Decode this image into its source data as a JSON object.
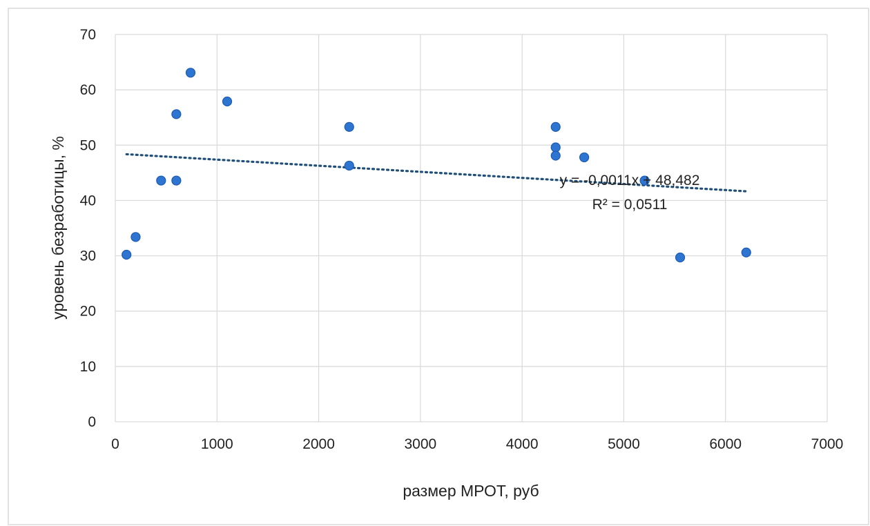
{
  "chart_data": {
    "type": "scatter",
    "title": "",
    "xlabel": "размер МРОТ, руб",
    "ylabel": "уровень безработицы, %",
    "xlim": [
      0,
      7000
    ],
    "ylim": [
      0,
      70
    ],
    "x_ticks": [
      0,
      1000,
      2000,
      3000,
      4000,
      5000,
      6000,
      7000
    ],
    "y_ticks": [
      0,
      10,
      20,
      30,
      40,
      50,
      60,
      70
    ],
    "x_tick_labels": [
      "0",
      "1000",
      "2000",
      "3000",
      "4000",
      "5000",
      "6000",
      "7000"
    ],
    "y_tick_labels": [
      "0",
      "10",
      "20",
      "30",
      "40",
      "50",
      "60",
      "70"
    ],
    "grid": true,
    "legend": "none",
    "series": [
      {
        "points": [
          {
            "x": 110,
            "y": 30.2
          },
          {
            "x": 200,
            "y": 33.4
          },
          {
            "x": 450,
            "y": 43.6
          },
          {
            "x": 600,
            "y": 43.6
          },
          {
            "x": 600,
            "y": 55.6
          },
          {
            "x": 740,
            "y": 63.1
          },
          {
            "x": 1100,
            "y": 57.9
          },
          {
            "x": 2300,
            "y": 53.3
          },
          {
            "x": 2300,
            "y": 46.3
          },
          {
            "x": 4330,
            "y": 53.3
          },
          {
            "x": 4330,
            "y": 49.6
          },
          {
            "x": 4330,
            "y": 48.1
          },
          {
            "x": 4611,
            "y": 47.8
          },
          {
            "x": 5205,
            "y": 43.6
          },
          {
            "x": 5554,
            "y": 29.7
          },
          {
            "x": 6204,
            "y": 30.6
          }
        ],
        "color": "#2e75d1"
      }
    ],
    "trendline": {
      "type": "linear",
      "style": "dotted",
      "color": "#1f4e79",
      "slope": -0.0011,
      "intercept": 48.482,
      "x_range": [
        110,
        6204
      ],
      "equation_label": "y = -0,0011x + 48,482",
      "r2_label": "R² = 0,0511"
    },
    "colors": {
      "grid": "#d9d9d9",
      "frame": "#d9d9d9",
      "marker": "#2e75d1",
      "marker_edge": "#1c5bb0"
    }
  }
}
